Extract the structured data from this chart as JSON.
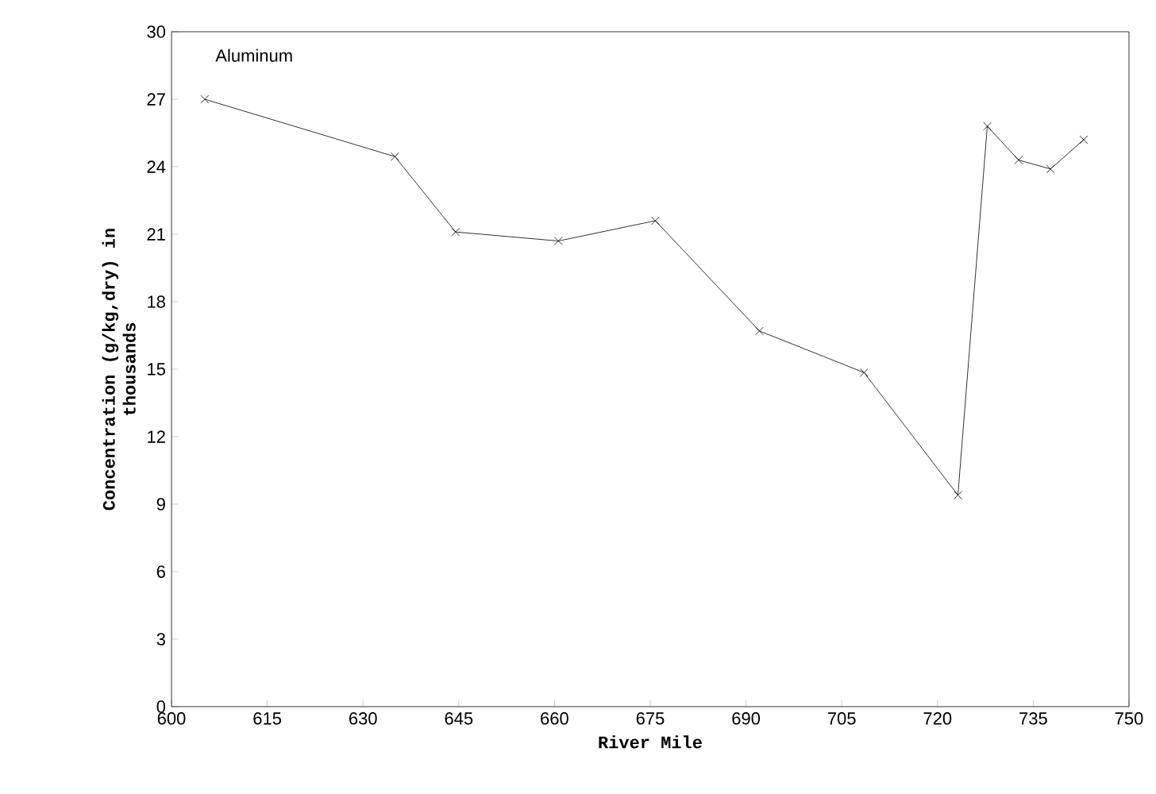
{
  "chart_data": {
    "type": "line",
    "xlabel": "River Mile",
    "ylabel": "Concentration (g/kg,dry) in thousands",
    "annotations": [
      "Aluminum"
    ],
    "x": [
      605.2,
      635.0,
      644.5,
      660.6,
      675.8,
      692.1,
      708.5,
      723.2,
      727.8,
      732.7,
      737.7,
      742.9
    ],
    "series": [
      {
        "color": "#000000",
        "values": [
          27.0,
          24.45,
          21.1,
          20.7,
          21.6,
          16.7,
          14.85,
          9.4,
          25.8,
          24.3,
          23.9,
          25.2
        ]
      }
    ],
    "xlim": [
      600,
      750
    ],
    "xticks": [
      600,
      615,
      630,
      645,
      660,
      675,
      690,
      705,
      720,
      735,
      750
    ],
    "ylim": [
      0,
      30
    ],
    "yticks": [
      0,
      3,
      6,
      9,
      12,
      15,
      18,
      21,
      24,
      27,
      30
    ],
    "grid": false,
    "marker": "cross",
    "line_style": "solid"
  }
}
